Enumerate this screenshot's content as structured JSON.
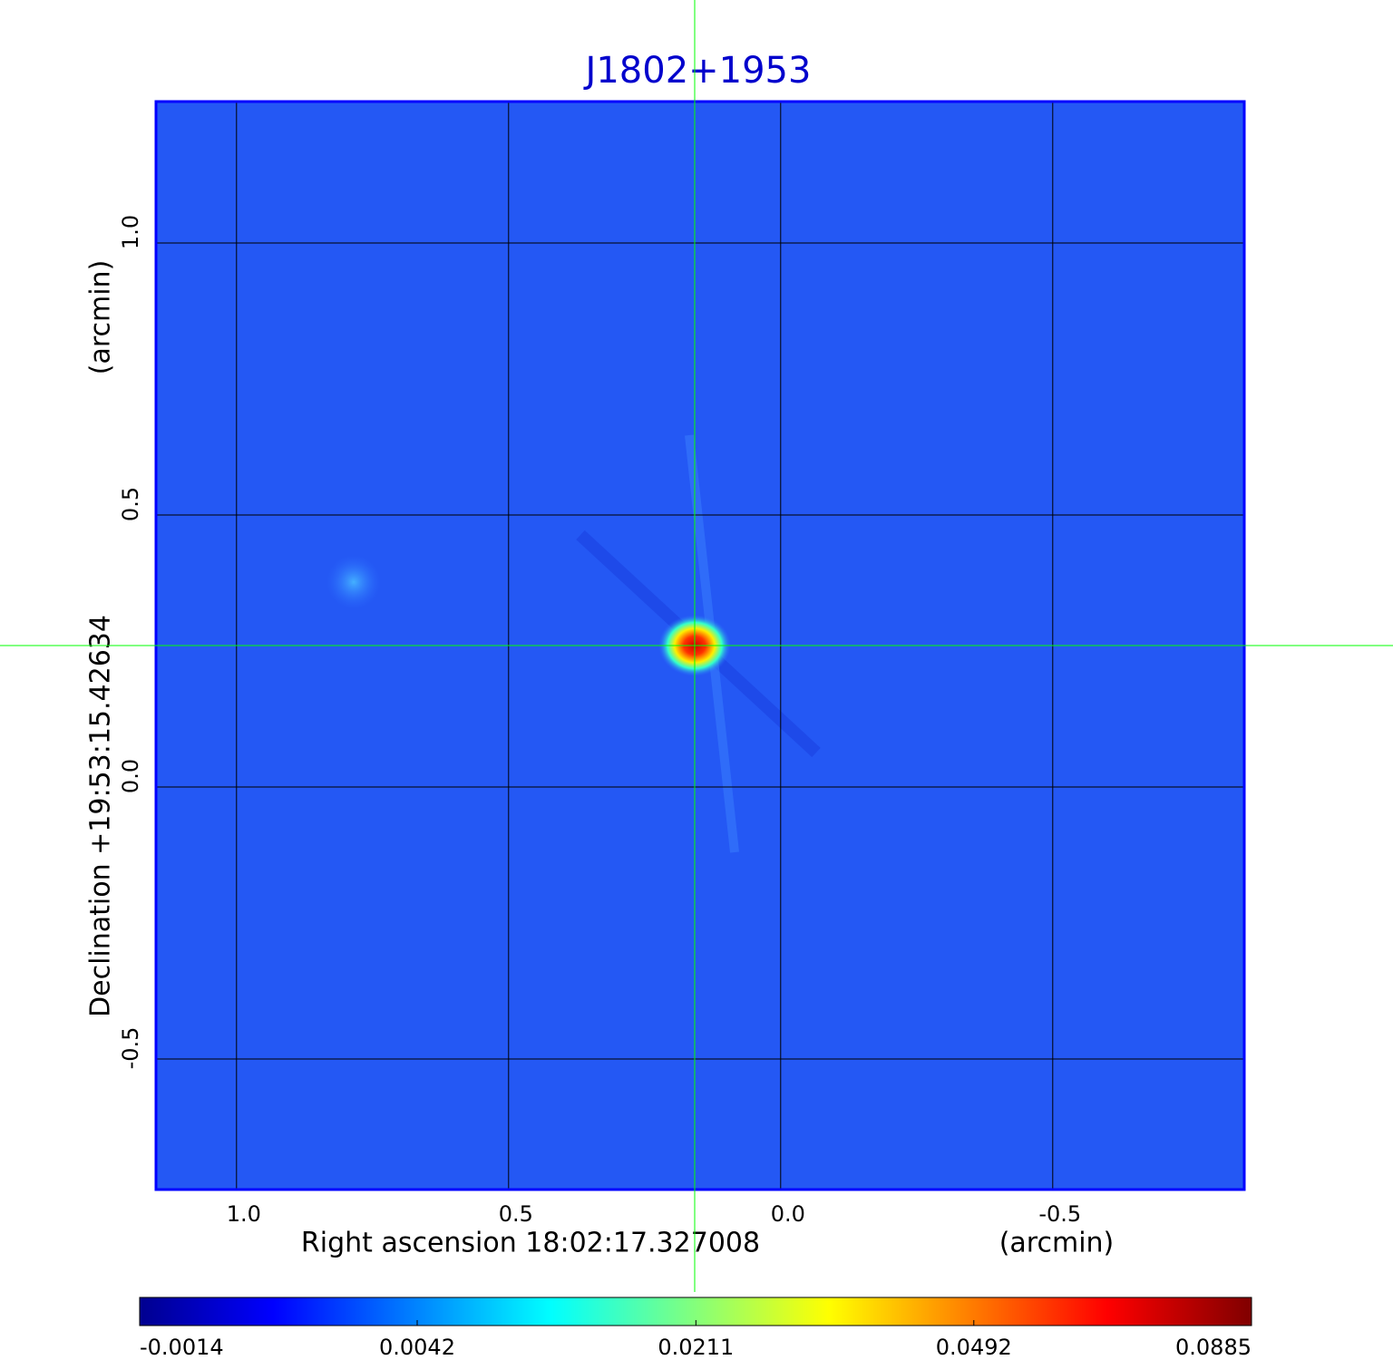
{
  "chart_data": {
    "type": "image",
    "title": "J1802+1953",
    "title_color": "#0000cc",
    "xlabel": "Right ascension  18:02:17.327008",
    "xunit": "(arcmin)",
    "ylabel": "Declination  +19:53:15.42634",
    "yunit": "(arcmin)",
    "xlim": [
      1.148,
      -0.852
    ],
    "ylim": [
      -0.74,
      1.26
    ],
    "xticks": [
      {
        "value": 1,
        "label": "1.0"
      },
      0.5,
      {
        "value": 0,
        "label": "0.0"
      },
      -0.5
    ],
    "yticks": [
      -0.5,
      {
        "value": 0,
        "label": "0.0"
      },
      0.5,
      {
        "value": 1,
        "label": "1.0"
      }
    ],
    "grid": true,
    "crosshair": {
      "x": 0.158,
      "y": 0.26,
      "color": "#00ff00"
    },
    "colorbar": {
      "colormap": "jet",
      "scale": "sqrt",
      "ticks": [
        -0.0014,
        0.0042,
        0.0211,
        0.0492,
        0.0885
      ]
    }
  }
}
